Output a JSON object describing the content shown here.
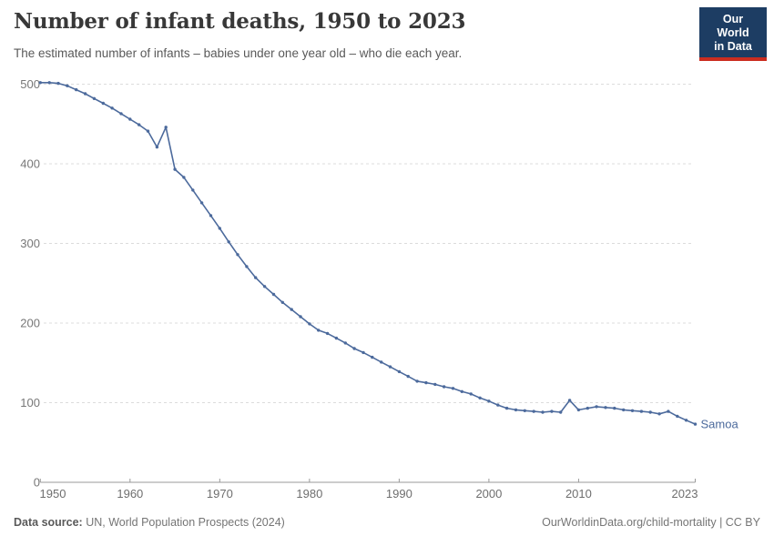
{
  "header": {
    "title": "Number of infant deaths, 1950 to 2023",
    "subtitle": "The estimated number of infants – babies under one year old – who die each year.",
    "logo": {
      "line1": "Our World",
      "line2": "in Data"
    }
  },
  "footer": {
    "source_label": "Data source:",
    "source_text": " UN, World Population Prospects (2024)",
    "link_text": "OurWorldinData.org/child-mortality | CC BY"
  },
  "colors": {
    "series_blue": "#4C6A9C",
    "logo_bg": "#1D3D63",
    "logo_red": "#CB2D20",
    "grid": "#DCDCDC",
    "axis": "#9A9A9A",
    "tick_text": "#6E6E6E",
    "y_tick_text": "#777777"
  },
  "chart_data": {
    "type": "line",
    "title": "Number of infant deaths, 1950 to 2023",
    "subtitle": "The estimated number of infants – babies under one year old – who die each year.",
    "xlabel": "",
    "ylabel": "",
    "xlim": [
      1950,
      2023
    ],
    "ylim": [
      0,
      520
    ],
    "grid": "horizontal-dashed",
    "legend_position": "end-of-line-label",
    "x_ticks": [
      1950,
      1960,
      1970,
      1980,
      1990,
      2000,
      2010,
      2023
    ],
    "y_ticks": [
      0,
      100,
      200,
      300,
      400,
      500
    ],
    "series": [
      {
        "name": "Samoa",
        "x": [
          1950,
          1951,
          1952,
          1953,
          1954,
          1955,
          1956,
          1957,
          1958,
          1959,
          1960,
          1961,
          1962,
          1963,
          1964,
          1965,
          1966,
          1967,
          1968,
          1969,
          1970,
          1971,
          1972,
          1973,
          1974,
          1975,
          1976,
          1977,
          1978,
          1979,
          1980,
          1981,
          1982,
          1983,
          1984,
          1985,
          1986,
          1987,
          1988,
          1989,
          1990,
          1991,
          1992,
          1993,
          1994,
          1995,
          1996,
          1997,
          1998,
          1999,
          2000,
          2001,
          2002,
          2003,
          2004,
          2005,
          2006,
          2007,
          2008,
          2009,
          2010,
          2011,
          2012,
          2013,
          2014,
          2015,
          2016,
          2017,
          2018,
          2019,
          2020,
          2021,
          2022,
          2023
        ],
        "values": [
          502,
          502,
          501,
          498,
          493,
          488,
          482,
          476,
          470,
          463,
          456,
          449,
          441,
          421,
          446,
          393,
          383,
          367,
          351,
          335,
          319,
          302,
          286,
          271,
          257,
          246,
          236,
          226,
          217,
          208,
          199,
          191,
          187,
          181,
          175,
          168,
          163,
          157,
          151,
          145,
          139,
          133,
          127,
          125,
          123,
          120,
          118,
          114,
          111,
          106,
          102,
          97,
          93,
          91,
          90,
          89,
          88,
          89,
          88,
          103,
          91,
          93,
          95,
          94,
          93,
          91,
          90,
          89,
          88,
          86,
          89,
          83,
          78,
          73
        ]
      }
    ]
  }
}
